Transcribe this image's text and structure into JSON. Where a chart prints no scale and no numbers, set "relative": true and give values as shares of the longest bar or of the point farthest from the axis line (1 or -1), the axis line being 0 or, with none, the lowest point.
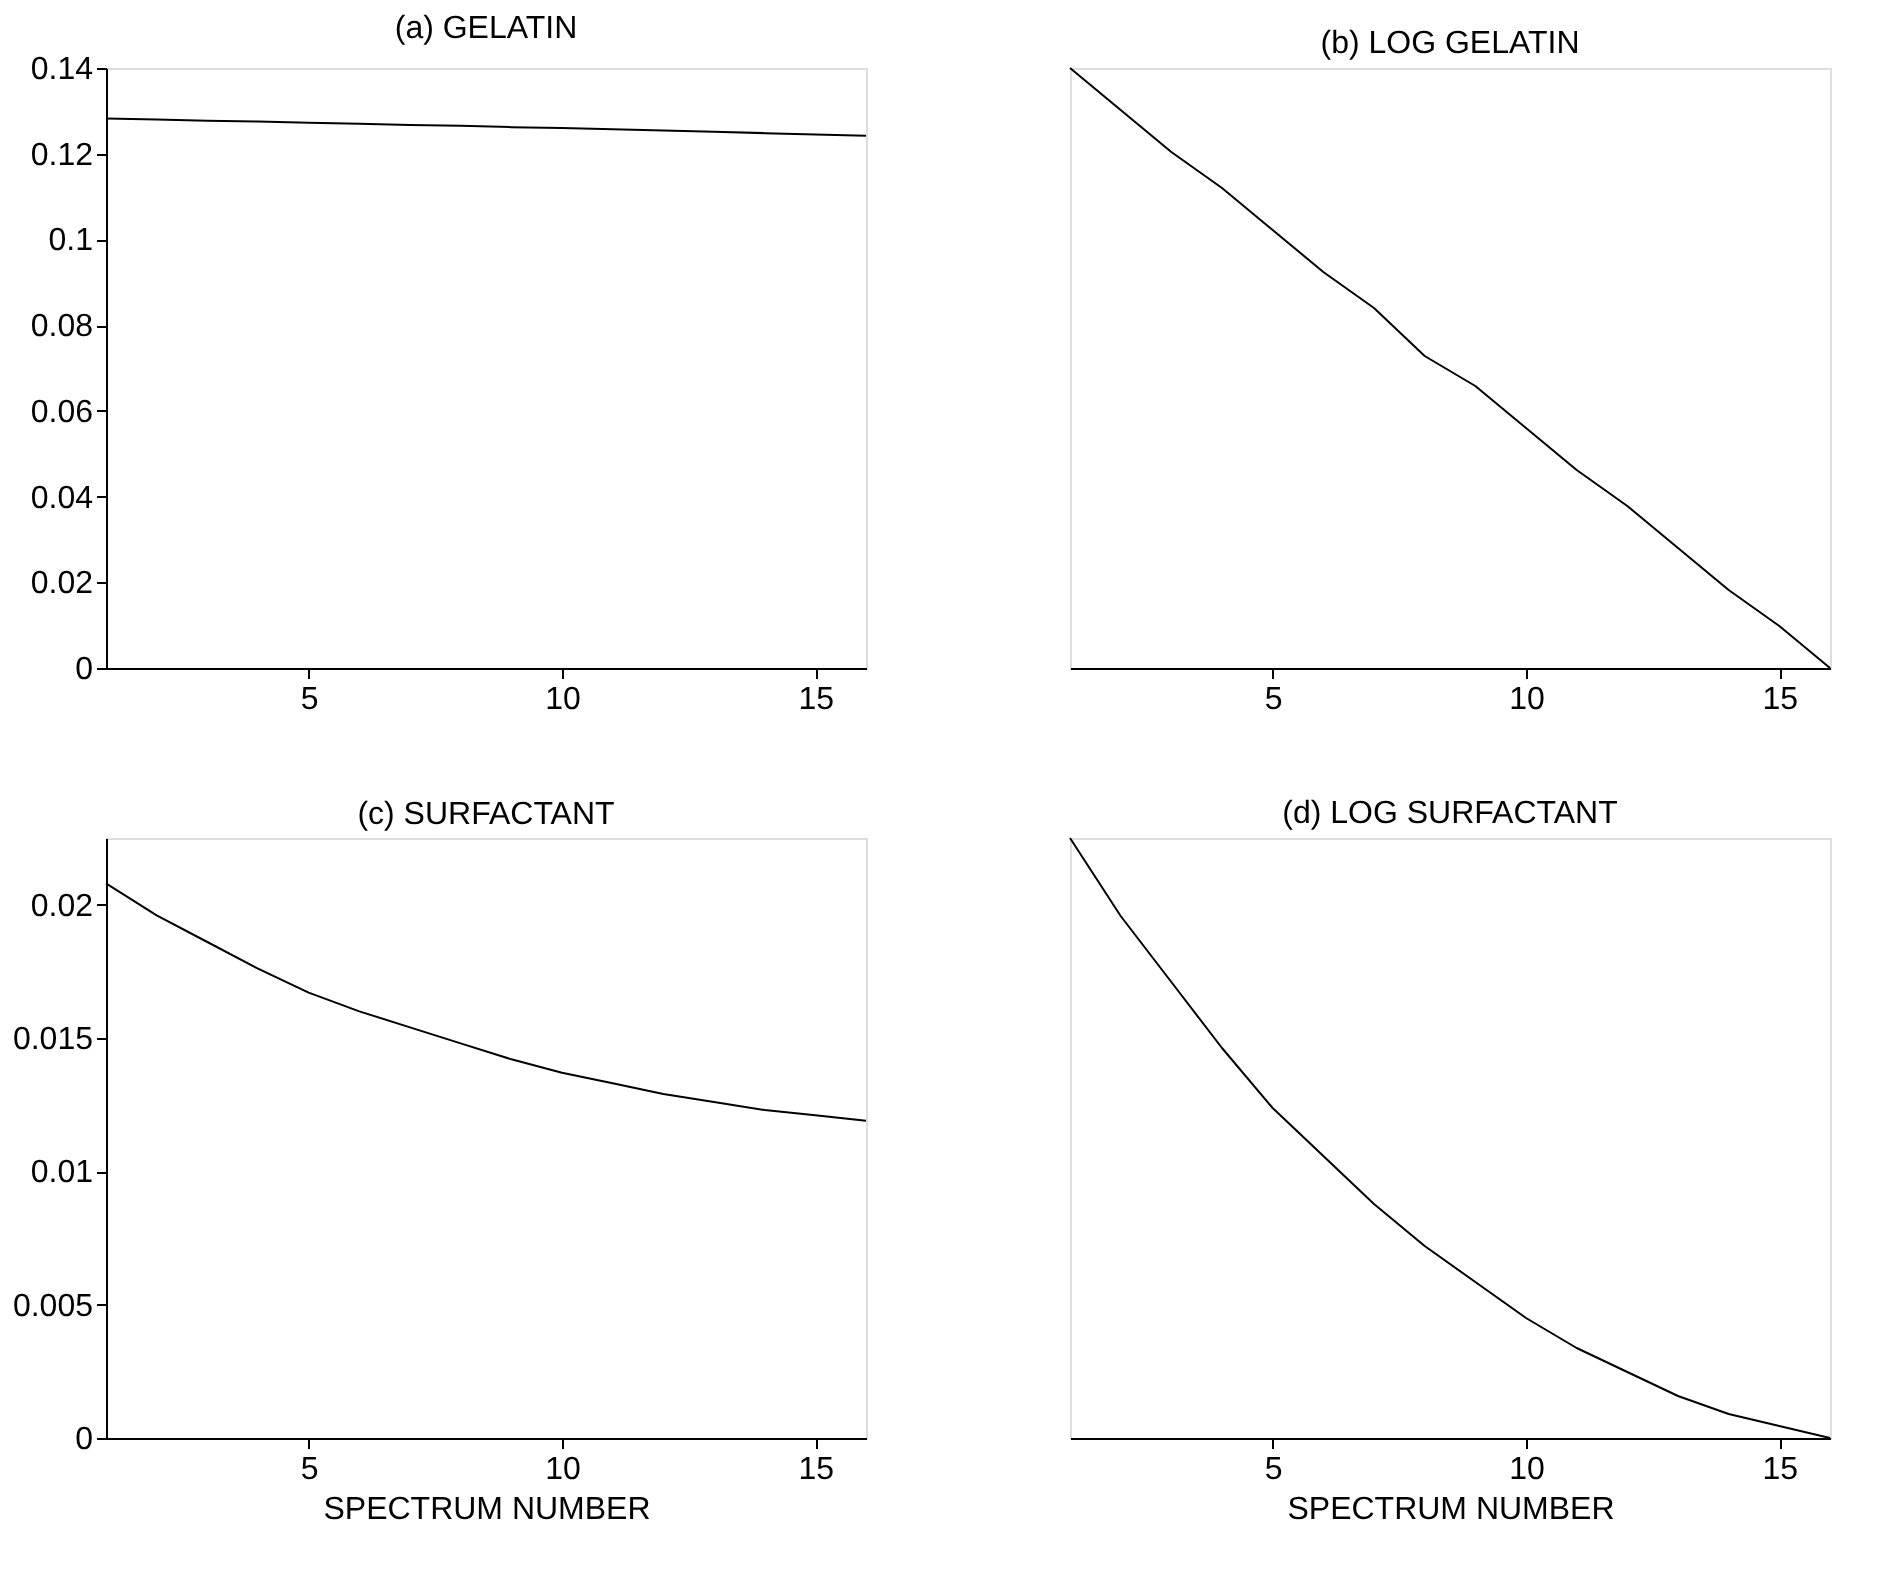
{
  "chart_data": [
    {
      "type": "line",
      "title": "(a) GELATIN",
      "x": [
        1,
        2,
        3,
        4,
        5,
        6,
        7,
        8,
        9,
        10,
        11,
        12,
        13,
        14,
        15,
        16
      ],
      "xlim": [
        1,
        16
      ],
      "xticks": [
        5,
        10,
        15
      ],
      "ylim": [
        0,
        0.14
      ],
      "yticks": [
        0,
        0.02,
        0.04,
        0.06,
        0.08,
        0.1,
        0.12,
        0.14
      ],
      "grid": false,
      "series": [
        {
          "color": "#000000",
          "values": [
            0.1282,
            0.128,
            0.1277,
            0.1275,
            0.1272,
            0.127,
            0.1267,
            0.1265,
            0.1262,
            0.126,
            0.1257,
            0.1254,
            0.1251,
            0.1248,
            0.1245,
            0.1242
          ]
        }
      ]
    },
    {
      "type": "line",
      "title": "(b) LOG GELATIN",
      "relative": true,
      "x": [
        1,
        2,
        3,
        4,
        5,
        6,
        7,
        8,
        9,
        10,
        11,
        12,
        13,
        14,
        15,
        16
      ],
      "xlim": [
        1,
        16
      ],
      "xticks": [
        5,
        10,
        15
      ],
      "tick_labels": "x",
      "grid": false,
      "series": [
        {
          "color": "#000000",
          "values": [
            1,
            0.93,
            0.86,
            0.8,
            0.73,
            0.66,
            0.6,
            0.52,
            0.47,
            0.4,
            0.33,
            0.27,
            0.2,
            0.13,
            0.07,
            0
          ]
        }
      ]
    },
    {
      "type": "line",
      "title": "(c) SURFACTANT",
      "xlabel": "SPECTRUM NUMBER",
      "x": [
        1,
        2,
        3,
        4,
        5,
        6,
        7,
        8,
        9,
        10,
        11,
        12,
        13,
        14,
        15,
        16
      ],
      "xlim": [
        1,
        16
      ],
      "xticks": [
        5,
        10,
        15
      ],
      "ylim": [
        0,
        0.0225
      ],
      "yticks": [
        0,
        0.005,
        0.01,
        0.015,
        0.02
      ],
      "grid": false,
      "series": [
        {
          "color": "#000000",
          "values": [
            0.0208,
            0.0196,
            0.0186,
            0.0176,
            0.0167,
            0.016,
            0.0154,
            0.0148,
            0.0142,
            0.0137,
            0.0133,
            0.0129,
            0.0126,
            0.0123,
            0.0121,
            0.0119
          ]
        }
      ]
    },
    {
      "type": "line",
      "title": "(d) LOG SURFACTANT",
      "xlabel": "SPECTRUM NUMBER",
      "relative": true,
      "x": [
        1,
        2,
        3,
        4,
        5,
        6,
        7,
        8,
        9,
        10,
        11,
        12,
        13,
        14,
        15,
        16
      ],
      "xlim": [
        1,
        16
      ],
      "xticks": [
        5,
        10,
        15
      ],
      "tick_labels": "x",
      "grid": false,
      "series": [
        {
          "color": "#000000",
          "values": [
            1,
            0.87,
            0.76,
            0.65,
            0.55,
            0.47,
            0.39,
            0.32,
            0.26,
            0.2,
            0.15,
            0.11,
            0.07,
            0.04,
            0.02,
            0
          ]
        }
      ]
    }
  ]
}
